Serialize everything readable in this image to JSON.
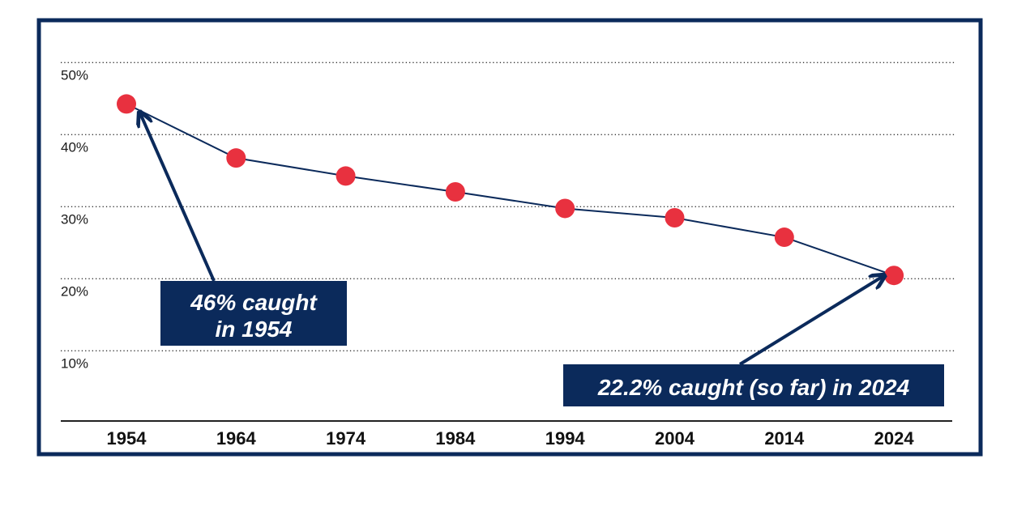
{
  "colors": {
    "frame": "#0b2a5b",
    "line": "#0b2a5b",
    "marker": "#e8313f",
    "grid": "#333333",
    "callout_bg": "#0b2a5b",
    "callout_text": "#ffffff"
  },
  "chart_data": {
    "type": "line",
    "title": "",
    "xlabel": "",
    "ylabel": "",
    "x": [
      "1954",
      "1964",
      "1974",
      "1984",
      "1994",
      "2004",
      "2014",
      "2024"
    ],
    "series": [
      {
        "values": [
          46,
          38.5,
          36,
          33.8,
          31.5,
          30.2,
          27.5,
          22.2
        ]
      }
    ],
    "ylim": [
      2,
      52
    ],
    "yticks": [
      {
        "value": 50,
        "label": "50%"
      },
      {
        "value": 40,
        "label": "40%"
      },
      {
        "value": 30,
        "label": "30%"
      },
      {
        "value": 20,
        "label": "20%"
      },
      {
        "value": 10,
        "label": "10%"
      }
    ],
    "grid": "horizontal dotted",
    "annotations": [
      {
        "lines": [
          "46% caught",
          "in 1954"
        ],
        "points_to": "1954"
      },
      {
        "lines": [
          "22.2% caught (so far) in 2024"
        ],
        "points_to": "2024"
      }
    ]
  }
}
